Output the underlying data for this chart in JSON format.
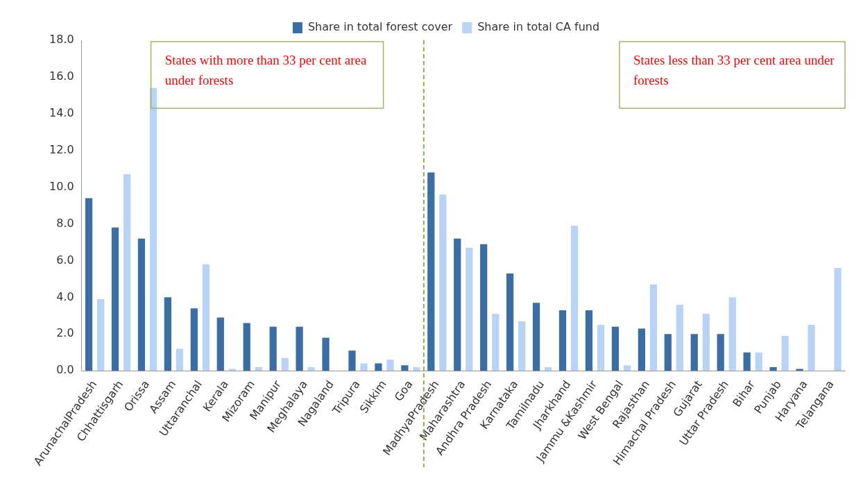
{
  "chart_data": {
    "type": "bar",
    "categories": [
      "ArunachalPradesh",
      "Chhattisgarh",
      "Orissa",
      "Assam",
      "Uttaranchal",
      "Kerala",
      "Mizoram",
      "Manipur",
      "Meghalaya",
      "Nagaland",
      "Tripura",
      "Sikkim",
      "Goa",
      "MadhyaPradesh",
      "Maharashtra",
      "Andhra Pradesh",
      "Karnataka",
      "Tamilnadu",
      "Jharkhand",
      "Jammu &Kashmir",
      "West Bengal",
      "Rajasthan",
      "Himachal Pradesh",
      "Gujarat",
      "Uttar Pradesh",
      "Bihar",
      "Punjab",
      "Haryana",
      "Telangana"
    ],
    "series": [
      {
        "name": "Share in total forest cover",
        "color": "#3b6ea5",
        "values": [
          9.4,
          7.8,
          7.2,
          4.0,
          3.4,
          2.9,
          2.6,
          2.4,
          2.4,
          1.8,
          1.1,
          0.4,
          0.3,
          10.8,
          7.2,
          6.9,
          5.3,
          3.7,
          3.3,
          3.3,
          2.4,
          2.3,
          2.0,
          2.0,
          2.0,
          1.0,
          0.2,
          0.1,
          null
        ]
      },
      {
        "name": "Share in total CA fund",
        "color": "#b8d3f5",
        "values": [
          3.9,
          10.7,
          15.4,
          1.2,
          5.8,
          0.1,
          0.2,
          0.7,
          0.2,
          0.0,
          0.4,
          0.6,
          0.2,
          9.6,
          6.7,
          3.1,
          2.7,
          0.2,
          7.9,
          2.5,
          0.3,
          4.7,
          3.6,
          3.1,
          4.0,
          1.0,
          1.9,
          2.5,
          5.6
        ]
      }
    ],
    "ylim": [
      0,
      18
    ],
    "yticks": [
      {
        "value": 0,
        "label": "0.0"
      },
      {
        "value": 2,
        "label": "2.0"
      },
      {
        "value": 4,
        "label": "4.0"
      },
      {
        "value": 6,
        "label": "6.0"
      },
      {
        "value": 8,
        "label": "8.0"
      },
      {
        "value": 10,
        "label": "10.0"
      },
      {
        "value": 12,
        "label": "12.0"
      },
      {
        "value": 14,
        "label": "14.0"
      },
      {
        "value": 16,
        "label": "16.0"
      },
      {
        "value": 18,
        "label": "18.0"
      }
    ],
    "grid": false,
    "legend": "top",
    "ref_lines": [
      {
        "axis": "x",
        "value": "MadhyaPradesh",
        "color": "#8db04a",
        "line_style": "dashed"
      }
    ],
    "annotations": [
      "States with more than 33 per cent area under forests",
      "States less than 33 per cent area under forests"
    ]
  }
}
